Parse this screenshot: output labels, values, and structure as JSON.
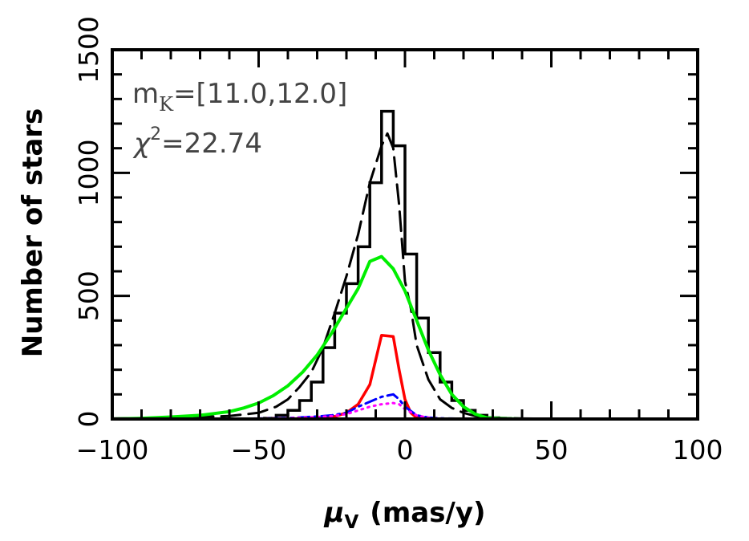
{
  "chart_data": {
    "type": "line",
    "xlabel_symbol": "μ",
    "xlabel_subscript": "V",
    "xlabel_unit": "(mas/y)",
    "ylabel": "Number of stars",
    "xlim": [
      -100,
      100
    ],
    "ylim": [
      0,
      1500
    ],
    "x_ticks": [
      -100,
      -50,
      0,
      50,
      100
    ],
    "x_tick_labels": [
      "−100",
      "−50",
      "0",
      "50",
      "100"
    ],
    "y_ticks": [
      0,
      500,
      1000,
      1500
    ],
    "y_tick_labels": [
      "0",
      "500",
      "1000",
      "1500"
    ],
    "annotation": {
      "m_prefix": "m",
      "m_subscript": "K",
      "m_value": "=[11.0,12.0]",
      "chi_prefix": "χ",
      "chi_superscript": "2",
      "chi_value": "=22.74"
    },
    "histogram": {
      "name": "",
      "color": "#000000",
      "bin_edges": [
        -100,
        -96,
        -92,
        -88,
        -84,
        -80,
        -76,
        -72,
        -68,
        -64,
        -60,
        -56,
        -52,
        -48,
        -44,
        -40,
        -36,
        -32,
        -28,
        -24,
        -20,
        -16,
        -12,
        -8,
        -4,
        0,
        4,
        8,
        12,
        16,
        20,
        24,
        28,
        32,
        36,
        40,
        44,
        48,
        52,
        56,
        60,
        64,
        68,
        72,
        76,
        80,
        84,
        88,
        92,
        96,
        100
      ],
      "counts": [
        0,
        0,
        0,
        0,
        0,
        0,
        0,
        0,
        0,
        0,
        0,
        0,
        0,
        3,
        15,
        35,
        75,
        150,
        290,
        430,
        550,
        700,
        960,
        1250,
        1110,
        670,
        410,
        270,
        150,
        75,
        35,
        15,
        5,
        2,
        0,
        0,
        0,
        0,
        0,
        0,
        0,
        0,
        0,
        0,
        0,
        0,
        0,
        0,
        0,
        0
      ]
    },
    "series": [
      {
        "name": "",
        "color": "#000000",
        "dash": "long",
        "x": [
          -100,
          -80,
          -60,
          -50,
          -44,
          -40,
          -36,
          -32,
          -28,
          -24,
          -20,
          -16,
          -12,
          -8,
          -6,
          -4,
          -2,
          0,
          2,
          4,
          8,
          12,
          16,
          20,
          24,
          30,
          40,
          50,
          60,
          80,
          100
        ],
        "y": [
          2,
          5,
          12,
          25,
          50,
          80,
          130,
          190,
          290,
          430,
          580,
          750,
          960,
          1110,
          1160,
          1100,
          870,
          560,
          450,
          300,
          160,
          80,
          45,
          25,
          12,
          5,
          2,
          1,
          0,
          0,
          0
        ]
      },
      {
        "name": "",
        "color": "#00ee00",
        "dash": "solid",
        "x": [
          -100,
          -90,
          -80,
          -70,
          -60,
          -55,
          -50,
          -45,
          -40,
          -35,
          -30,
          -25,
          -20,
          -16,
          -12,
          -8,
          -4,
          0,
          4,
          8,
          12,
          16,
          20,
          24,
          28,
          32,
          36,
          40,
          50,
          60,
          70,
          80,
          90,
          100
        ],
        "y": [
          0,
          3,
          8,
          15,
          30,
          45,
          65,
          95,
          135,
          190,
          260,
          350,
          450,
          530,
          640,
          660,
          610,
          520,
          400,
          280,
          180,
          100,
          50,
          20,
          5,
          2,
          1,
          0,
          0,
          0,
          0,
          0,
          0,
          0
        ],
        "width": 4
      },
      {
        "name": "",
        "color": "#ff0000",
        "dash": "solid",
        "x": [
          -100,
          -50,
          -30,
          -24,
          -20,
          -16,
          -12,
          -8,
          -4,
          -2,
          0,
          2,
          4,
          8,
          12,
          20,
          30,
          50,
          100
        ],
        "y": [
          0,
          0,
          2,
          10,
          25,
          60,
          140,
          340,
          335,
          200,
          80,
          25,
          5,
          1,
          0,
          0,
          0,
          0,
          0
        ],
        "width": 3.5
      },
      {
        "name": "",
        "color": "#0000ff",
        "dash": "dashdot",
        "x": [
          -100,
          -60,
          -50,
          -40,
          -30,
          -25,
          -20,
          -16,
          -12,
          -8,
          -4,
          -2,
          0,
          4,
          8,
          12,
          16,
          20,
          30,
          40,
          50,
          100
        ],
        "y": [
          0,
          1,
          2,
          4,
          10,
          15,
          25,
          50,
          70,
          90,
          100,
          80,
          50,
          15,
          6,
          3,
          2,
          1,
          0,
          0,
          0,
          0
        ],
        "width": 3
      },
      {
        "name": "",
        "color": "#ff00ff",
        "dash": "dot",
        "x": [
          -100,
          -60,
          -50,
          -40,
          -30,
          -25,
          -20,
          -16,
          -12,
          -8,
          -4,
          -2,
          0,
          4,
          8,
          12,
          16,
          20,
          30,
          40,
          50,
          100
        ],
        "y": [
          0,
          1,
          2,
          3,
          8,
          12,
          20,
          35,
          50,
          60,
          65,
          60,
          40,
          15,
          5,
          2,
          1,
          0,
          0,
          0,
          0,
          0
        ],
        "width": 3
      }
    ]
  }
}
